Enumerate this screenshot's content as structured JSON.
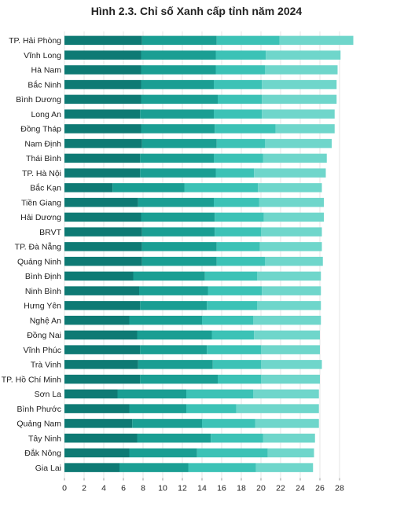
{
  "chart_data": {
    "type": "bar",
    "orientation": "horizontal",
    "stacked": true,
    "title": "Hình 2.3. Chỉ số Xanh cấp tỉnh năm 2024",
    "xlabel": "",
    "ylabel": "",
    "xlim": [
      0,
      28
    ],
    "xticks": [
      0,
      2,
      4,
      6,
      8,
      10,
      12,
      14,
      16,
      18,
      20,
      22,
      24,
      26,
      28
    ],
    "grid": true,
    "legend": "none",
    "categories": [
      "TP. Hải Phòng",
      "Vĩnh Long",
      "Hà Nam",
      "Bắc Ninh",
      "Bình Dương",
      "Long An",
      "Đồng Tháp",
      "Nam Định",
      "Thái Bình",
      "TP. Hà Nội",
      "Bắc Kạn",
      "Tiền Giang",
      "Hải Dương",
      "BRVT",
      "TP. Đà Nẵng",
      "Quảng Ninh",
      "Bình Định",
      "Ninh Bình",
      "Hưng Yên",
      "Nghệ An",
      "Đồng Nai",
      "Vĩnh Phúc",
      "Trà Vinh",
      "TP. Hồ Chí Minh",
      "Sơn La",
      "Bình Phước",
      "Quảng Nam",
      "Tây Ninh",
      "Đắk Nông",
      "Gia Lai"
    ],
    "series": [
      {
        "color": "#0e7a74",
        "values": [
          7.9,
          7.8,
          7.8,
          7.8,
          7.8,
          7.7,
          7.8,
          7.9,
          7.7,
          7.7,
          4.9,
          7.5,
          7.8,
          7.9,
          7.9,
          7.9,
          7.0,
          7.6,
          7.7,
          6.6,
          7.4,
          7.7,
          7.5,
          7.7,
          5.4,
          6.6,
          6.9,
          7.4,
          6.6,
          5.6
        ]
      },
      {
        "color": "#1a9e93",
        "values": [
          7.6,
          7.6,
          7.6,
          7.4,
          7.8,
          7.5,
          7.5,
          7.6,
          7.5,
          7.7,
          7.3,
          7.7,
          7.5,
          7.4,
          7.6,
          7.6,
          7.3,
          7.0,
          6.8,
          7.4,
          7.6,
          6.8,
          7.6,
          7.9,
          7.0,
          5.8,
          7.1,
          7.5,
          6.9,
          7.0
        ]
      },
      {
        "color": "#3cc2b6",
        "values": [
          6.4,
          5.1,
          5.0,
          4.9,
          4.5,
          4.9,
          6.2,
          4.9,
          5.0,
          3.9,
          7.5,
          4.6,
          5.0,
          4.7,
          4.4,
          4.9,
          5.3,
          5.5,
          5.1,
          5.2,
          4.3,
          5.5,
          4.9,
          4.4,
          6.8,
          5.1,
          5.4,
          5.3,
          7.2,
          6.9
        ]
      },
      {
        "color": "#6fd6cb",
        "values": [
          7.5,
          7.6,
          7.4,
          7.6,
          7.6,
          7.4,
          6.0,
          6.8,
          6.5,
          7.3,
          6.5,
          6.6,
          6.1,
          6.2,
          6.3,
          5.9,
          6.5,
          6.0,
          6.5,
          6.9,
          6.7,
          6.0,
          6.2,
          6.0,
          6.7,
          8.4,
          6.5,
          5.3,
          4.7,
          5.8
        ]
      }
    ]
  }
}
